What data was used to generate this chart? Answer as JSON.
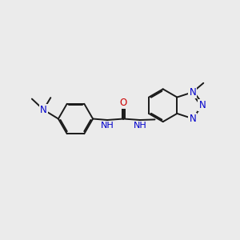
{
  "background_color": "#ebebeb",
  "bond_color": "#1a1a1a",
  "bond_width": 1.4,
  "atom_colors": {
    "N": "#0000cc",
    "O": "#cc0000",
    "C": "#1a1a1a"
  },
  "font_size": 8.5,
  "font_size_small": 7.5
}
